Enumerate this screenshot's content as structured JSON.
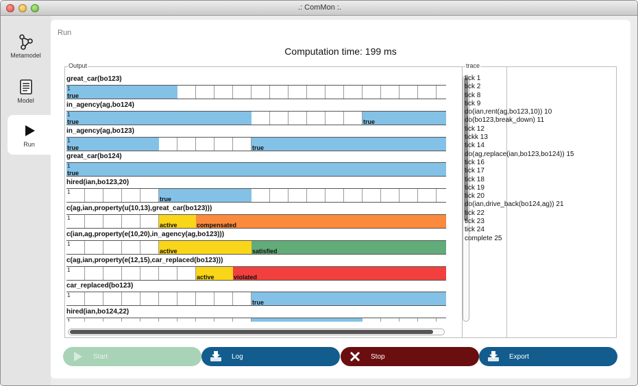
{
  "window": {
    "title": ".: ComMon :."
  },
  "sidebar": {
    "items": [
      {
        "label": "Metamodel",
        "icon": "graph-icon"
      },
      {
        "label": "Model",
        "icon": "document-icon"
      },
      {
        "label": "Run",
        "icon": "play-icon",
        "active": true
      }
    ]
  },
  "main": {
    "section_label": "Run",
    "computation_time": "Computation time: 199 ms"
  },
  "output": {
    "legend": "Output",
    "colors": {
      "true": "#84c1e6",
      "active": "#f9d619",
      "compensated": "#fb8a3d",
      "satisfied": "#62ac79",
      "violated": "#f1403d"
    },
    "rows": [
      {
        "title": "great_car(bo123)",
        "segments": [
          {
            "from": 0,
            "to": 6,
            "state": "true",
            "label": "true"
          }
        ]
      },
      {
        "title": "in_agency(ag,bo124)",
        "segments": [
          {
            "from": 0,
            "to": 10,
            "state": "true",
            "label": "true"
          },
          {
            "from": 16,
            "to": 21,
            "state": "true",
            "label": "true"
          }
        ]
      },
      {
        "title": "in_agency(ag,bo123)",
        "segments": [
          {
            "from": 0,
            "to": 5,
            "state": "true",
            "label": "true"
          },
          {
            "from": 10,
            "to": 21,
            "state": "true",
            "label": "true"
          }
        ]
      },
      {
        "title": "great_car(bo124)",
        "segments": [
          {
            "from": 0,
            "to": 21,
            "state": "true",
            "label": "true"
          }
        ]
      },
      {
        "title": "hired(ian,bo123,20)",
        "segments": [
          {
            "from": 5,
            "to": 10,
            "state": "true",
            "label": "true"
          }
        ]
      },
      {
        "title": "c(ag,ian,property(u(10,13),great_car(bo123)))",
        "segments": [
          {
            "from": 5,
            "to": 7,
            "state": "active",
            "label": "active"
          },
          {
            "from": 7,
            "to": 21,
            "state": "compensated",
            "label": "compensated"
          }
        ]
      },
      {
        "title": "c(ian,ag,property(e(10,20),in_agency(ag,bo123)))",
        "segments": [
          {
            "from": 5,
            "to": 10,
            "state": "active",
            "label": "active"
          },
          {
            "from": 10,
            "to": 21,
            "state": "satisfied",
            "label": "satisfied"
          }
        ]
      },
      {
        "title": "c(ag,ian,property(e(12,15),car_replaced(bo123)))",
        "segments": [
          {
            "from": 7,
            "to": 9,
            "state": "active",
            "label": "active"
          },
          {
            "from": 9,
            "to": 21,
            "state": "violated",
            "label": "violated"
          }
        ]
      },
      {
        "title": "car_replaced(bo123)",
        "segments": [
          {
            "from": 10,
            "to": 21,
            "state": "true",
            "label": "true"
          }
        ]
      },
      {
        "title": "hired(ian,bo124,22)",
        "segments": [
          {
            "from": 10,
            "to": 16,
            "state": "true",
            "label": ""
          }
        ]
      }
    ],
    "start_tick": "1"
  },
  "trace": {
    "legend": "trace",
    "entries": [
      "tick 1",
      "tick 2",
      "tick 8",
      "tick 9",
      "do(ian,rent(ag,bo123,10)) 10",
      "do(bo123,break_down) 11",
      "tick 12",
      "tickk 13",
      "tick 14",
      "do(ag,replace(ian,bo123,bo124)) 15",
      "tick 16",
      "tick 17",
      "tick 18",
      "tick 19",
      "tick 20",
      "do(ian,drive_back(bo124,ag)) 21",
      "tick 22",
      "tick 23",
      "tick 24",
      "complete 25"
    ]
  },
  "buttons": {
    "start": "Start",
    "log": "Log",
    "stop": "Stop",
    "export": "Export"
  }
}
